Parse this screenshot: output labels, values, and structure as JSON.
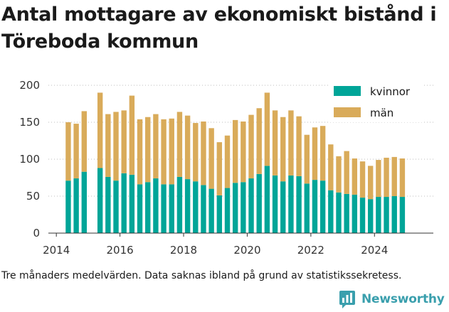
{
  "title": "Antal mottagare av ekonomiskt bistånd i Töreboda kommun",
  "caption": "Tre månaders medelvärden. Data saknas ibland på grund av statistikssekretess.",
  "brand": {
    "name": "Newsworthy",
    "color": "#3a9fad",
    "icon": "newsworthy-logo-icon"
  },
  "chart_data": {
    "type": "bar",
    "stacked": true,
    "title": "Antal mottagare av ekonomiskt bistånd i Töreboda kommun",
    "xlabel": "",
    "ylabel": "",
    "ylim": [
      0,
      200
    ],
    "yticks": [
      0,
      50,
      100,
      150,
      200
    ],
    "xlim": [
      2013.75,
      2025.85
    ],
    "xticks": [
      2014,
      2016,
      2018,
      2020,
      2022,
      2024
    ],
    "grid": true,
    "legend": "top-right",
    "x": [
      2014.375,
      2014.625,
      2014.875,
      2015.375,
      2015.625,
      2015.875,
      2016.125,
      2016.375,
      2016.625,
      2016.875,
      2017.125,
      2017.375,
      2017.625,
      2017.875,
      2018.125,
      2018.375,
      2018.625,
      2018.875,
      2019.125,
      2019.375,
      2019.625,
      2019.875,
      2020.125,
      2020.375,
      2020.625,
      2020.875,
      2021.125,
      2021.375,
      2021.625,
      2021.875,
      2022.125,
      2022.375,
      2022.625,
      2022.875,
      2023.125,
      2023.375,
      2023.625,
      2023.875,
      2024.125,
      2024.375,
      2024.625,
      2024.875
    ],
    "series": [
      {
        "name": "kvinnor",
        "color": "#00a598",
        "values": [
          71,
          74,
          83,
          88,
          76,
          71,
          81,
          79,
          66,
          69,
          74,
          66,
          66,
          76,
          73,
          70,
          65,
          60,
          51,
          61,
          68,
          69,
          74,
          80,
          91,
          78,
          70,
          78,
          77,
          67,
          72,
          71,
          58,
          55,
          53,
          52,
          48,
          46,
          49,
          49,
          50,
          49
        ]
      },
      {
        "name": "män",
        "color": "#d9ab5a",
        "values": [
          79,
          74,
          82,
          102,
          85,
          93,
          85,
          107,
          88,
          88,
          87,
          88,
          89,
          88,
          86,
          79,
          86,
          82,
          72,
          71,
          85,
          82,
          86,
          89,
          99,
          88,
          87,
          88,
          81,
          66,
          71,
          74,
          62,
          49,
          58,
          49,
          49,
          45,
          50,
          53,
          53,
          52
        ]
      }
    ]
  }
}
